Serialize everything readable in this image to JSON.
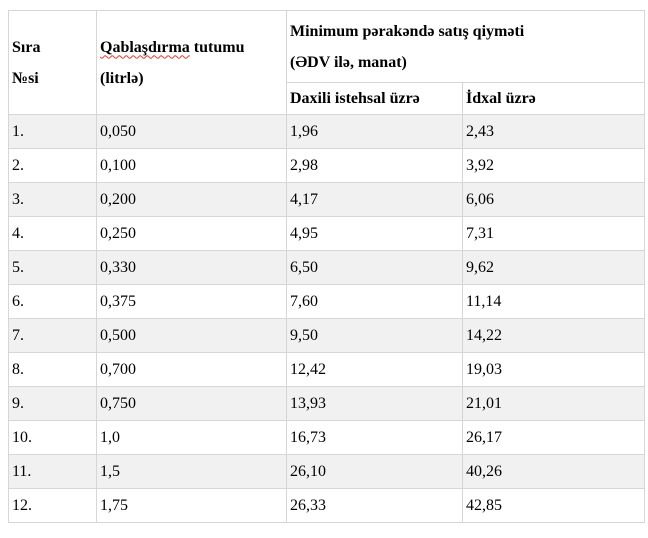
{
  "table": {
    "header": {
      "col1": {
        "line1": "Sıra",
        "line2": "№si"
      },
      "col2": {
        "marked_word": "Qablaşdırma",
        "rest": " tutumu",
        "line2": "(litrlə)"
      },
      "price": {
        "line1": "Minimum pərakəndə satış qiyməti",
        "line2": "(ƏDV ilə, manat)"
      },
      "sub": {
        "domestic": "Daxili istehsal üzrə",
        "import": "İdxal üzrə"
      }
    },
    "rows": [
      {
        "no": "1.",
        "capacity": "0,050",
        "domestic": "1,96",
        "import": "2,43"
      },
      {
        "no": "2.",
        "capacity": "0,100",
        "domestic": "2,98",
        "import": "3,92"
      },
      {
        "no": "3.",
        "capacity": "0,200",
        "domestic": "4,17",
        "import": "6,06"
      },
      {
        "no": "4.",
        "capacity": "0,250",
        "domestic": "4,95",
        "import": "7,31"
      },
      {
        "no": "5.",
        "capacity": "0,330",
        "domestic": "6,50",
        "import": "9,62"
      },
      {
        "no": "6.",
        "capacity": "0,375",
        "domestic": "7,60",
        "import": "11,14"
      },
      {
        "no": "7.",
        "capacity": "0,500",
        "domestic": "9,50",
        "import": "14,22"
      },
      {
        "no": "8.",
        "capacity": "0,700",
        "domestic": "12,42",
        "import": "19,03"
      },
      {
        "no": "9.",
        "capacity": "0,750",
        "domestic": "13,93",
        "import": "21,01"
      },
      {
        "no": "10.",
        "capacity": "1,0",
        "domestic": "16,73",
        "import": "26,17"
      },
      {
        "no": "11.",
        "capacity": "1,5",
        "domestic": "26,10",
        "import": "40,26"
      },
      {
        "no": "12.",
        "capacity": "1,75",
        "domestic": "26,33",
        "import": "42,85"
      }
    ],
    "colors": {
      "row_stripe": "#f1f1f1",
      "border": "#d6d6d6",
      "spellcheck_underline": "#e03a2f"
    }
  }
}
